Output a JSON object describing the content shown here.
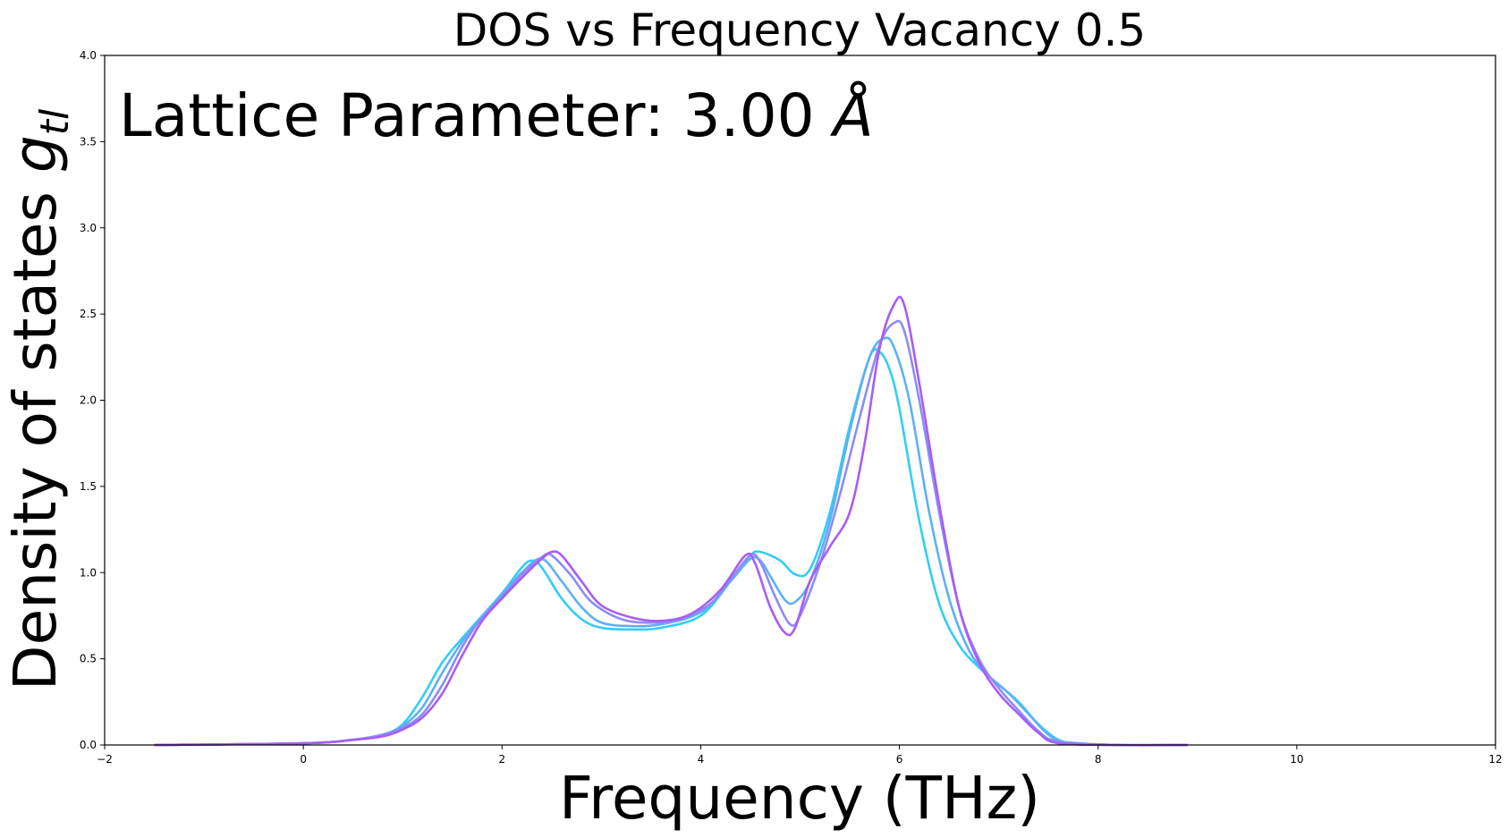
{
  "chart_data": {
    "type": "line",
    "title": "DOS vs Frequency Vacancy 0.5",
    "xlabel": "Frequency (THz)",
    "ylabel_main": "Density of states ",
    "ylabel_symbol": "g",
    "ylabel_subscript": "tl",
    "annotation": {
      "prefix": "Lattice Parameter: 3.00 ",
      "unit": "Å"
    },
    "xlim": [
      -2,
      12
    ],
    "ylim": [
      0,
      4
    ],
    "xticks": [
      -2,
      0,
      2,
      4,
      6,
      8,
      10,
      12
    ],
    "xtick_labels": [
      "−2",
      "0",
      "2",
      "4",
      "6",
      "8",
      "10",
      "12"
    ],
    "yticks": [
      0,
      0.5,
      1,
      1.5,
      2,
      2.5,
      3,
      3.5,
      4
    ],
    "ytick_labels": [
      "0.0",
      "0.5",
      "1.0",
      "1.5",
      "2.0",
      "2.5",
      "3.0",
      "3.5",
      "4.0"
    ],
    "grid": false,
    "series": [
      {
        "color": "#33ccf7",
        "x": [
          -1.5,
          0,
          0.5,
          0.8,
          1.0,
          1.2,
          1.4,
          1.6,
          1.8,
          2.0,
          2.2,
          2.3,
          2.4,
          2.6,
          2.8,
          3.0,
          3.3,
          3.6,
          4.0,
          4.3,
          4.5,
          4.6,
          4.8,
          4.95,
          5.1,
          5.3,
          5.5,
          5.7,
          5.8,
          5.9,
          6.0,
          6.2,
          6.4,
          6.6,
          6.8,
          7.0,
          7.2,
          7.4,
          7.6,
          7.8,
          8.2,
          8.9
        ],
        "y": [
          0.0,
          0.01,
          0.03,
          0.06,
          0.12,
          0.28,
          0.48,
          0.62,
          0.75,
          0.88,
          1.03,
          1.07,
          1.03,
          0.85,
          0.73,
          0.68,
          0.67,
          0.68,
          0.75,
          0.95,
          1.1,
          1.12,
          1.07,
          0.99,
          1.02,
          1.35,
          1.85,
          2.25,
          2.28,
          2.18,
          1.95,
          1.3,
          0.82,
          0.58,
          0.45,
          0.35,
          0.25,
          0.12,
          0.03,
          0.01,
          0.0,
          0.0
        ]
      },
      {
        "color": "#5cb0f7",
        "x": [
          -1.5,
          0,
          0.5,
          0.8,
          1.0,
          1.2,
          1.4,
          1.6,
          1.8,
          2.0,
          2.2,
          2.4,
          2.6,
          2.8,
          3.0,
          3.3,
          3.6,
          4.0,
          4.3,
          4.5,
          4.6,
          4.7,
          4.85,
          4.95,
          5.1,
          5.3,
          5.5,
          5.7,
          5.85,
          5.95,
          6.1,
          6.3,
          6.5,
          6.7,
          6.9,
          7.1,
          7.3,
          7.5,
          7.7,
          8.2,
          8.9
        ],
        "y": [
          0.0,
          0.01,
          0.03,
          0.06,
          0.11,
          0.22,
          0.42,
          0.6,
          0.74,
          0.87,
          1.0,
          1.08,
          0.95,
          0.8,
          0.71,
          0.69,
          0.7,
          0.77,
          0.95,
          1.08,
          1.07,
          0.98,
          0.84,
          0.83,
          0.95,
          1.3,
          1.82,
          2.25,
          2.36,
          2.3,
          2.0,
          1.35,
          0.85,
          0.55,
          0.4,
          0.3,
          0.18,
          0.06,
          0.01,
          0.0,
          0.0
        ]
      },
      {
        "color": "#8c8cf5",
        "x": [
          -1.5,
          0,
          0.5,
          0.8,
          1.0,
          1.2,
          1.4,
          1.6,
          1.8,
          2.0,
          2.2,
          2.4,
          2.5,
          2.7,
          2.9,
          3.2,
          3.5,
          3.8,
          4.1,
          4.3,
          4.5,
          4.6,
          4.75,
          4.9,
          5.0,
          5.2,
          5.4,
          5.6,
          5.8,
          5.95,
          6.05,
          6.2,
          6.4,
          6.6,
          6.8,
          7.0,
          7.2,
          7.4,
          7.6,
          8.2,
          8.9
        ],
        "y": [
          0.0,
          0.01,
          0.03,
          0.06,
          0.1,
          0.18,
          0.35,
          0.57,
          0.74,
          0.86,
          0.99,
          1.09,
          1.1,
          0.98,
          0.83,
          0.73,
          0.71,
          0.73,
          0.82,
          0.96,
          1.1,
          1.06,
          0.86,
          0.7,
          0.75,
          1.05,
          1.45,
          1.9,
          2.32,
          2.45,
          2.4,
          2.0,
          1.35,
          0.8,
          0.5,
          0.33,
          0.2,
          0.08,
          0.02,
          0.0,
          0.0
        ]
      },
      {
        "color": "#a85cf7",
        "x": [
          -1.5,
          0,
          0.5,
          0.8,
          1.0,
          1.2,
          1.4,
          1.6,
          1.8,
          2.0,
          2.2,
          2.4,
          2.5,
          2.6,
          2.8,
          3.0,
          3.3,
          3.6,
          3.9,
          4.2,
          4.45,
          4.55,
          4.7,
          4.85,
          4.95,
          5.1,
          5.3,
          5.5,
          5.65,
          5.8,
          5.95,
          6.05,
          6.2,
          6.4,
          6.6,
          6.8,
          7.0,
          7.2,
          7.4,
          7.6,
          8.2,
          8.9
        ],
        "y": [
          0.0,
          0.01,
          0.03,
          0.05,
          0.09,
          0.16,
          0.3,
          0.52,
          0.72,
          0.85,
          0.97,
          1.08,
          1.12,
          1.1,
          0.95,
          0.81,
          0.74,
          0.72,
          0.76,
          0.9,
          1.1,
          1.05,
          0.8,
          0.65,
          0.68,
          0.95,
          1.15,
          1.35,
          1.75,
          2.3,
          2.56,
          2.55,
          2.1,
          1.4,
          0.8,
          0.48,
          0.3,
          0.18,
          0.07,
          0.01,
          0.0,
          0.0
        ]
      }
    ]
  }
}
